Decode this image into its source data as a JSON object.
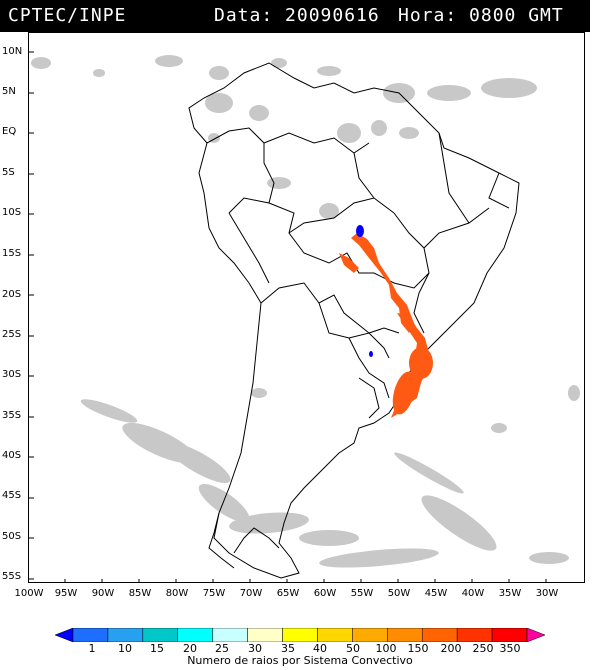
{
  "header": {
    "org": "CPTEC/INPE",
    "date_label": "Data: 20090616",
    "hour_label": "Hora: 0800 GMT"
  },
  "axes": {
    "lat_labels": [
      "10N",
      "5N",
      "EQ",
      "5S",
      "10S",
      "15S",
      "20S",
      "25S",
      "30S",
      "35S",
      "40S",
      "45S",
      "50S",
      "55S"
    ],
    "lon_labels": [
      "100W",
      "95W",
      "90W",
      "85W",
      "80W",
      "75W",
      "70W",
      "65W",
      "60W",
      "55W",
      "50W",
      "45W",
      "40W",
      "35W",
      "30W"
    ]
  },
  "legend": {
    "title": "Numero de raios por Sistema Convectivo",
    "ticks": [
      "1",
      "10",
      "15",
      "20",
      "25",
      "30",
      "35",
      "40",
      "50",
      "100",
      "150",
      "200",
      "250",
      "350"
    ],
    "colors": [
      "#0000ff",
      "#1e6eff",
      "#28a0f0",
      "#00c8c8",
      "#00ffff",
      "#c8ffff",
      "#ffffc8",
      "#ffff00",
      "#ffd700",
      "#ffaa00",
      "#ff8c00",
      "#ff6400",
      "#ff3200",
      "#ff0000",
      "#ff00a0"
    ]
  },
  "map": {
    "background": "#ffffff",
    "cloud_color": "#c8c8c8",
    "lightning_high_color": "#ff5a14",
    "lightning_low_color": "#0000ff"
  }
}
